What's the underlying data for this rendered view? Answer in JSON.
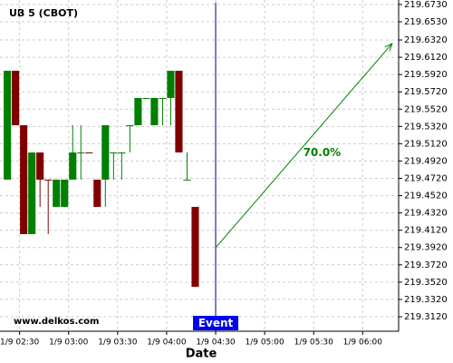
{
  "chart_data": {
    "type": "candlestick",
    "title": "UB 5 (CBOT)",
    "watermark": "www.delkos.com",
    "x_label": "Date",
    "x": [
      "1/9 02:20",
      "1/9 02:25",
      "1/9 02:30",
      "1/9 02:35",
      "1/9 02:40",
      "1/9 02:45",
      "1/9 02:50",
      "1/9 02:55",
      "1/9 03:00",
      "1/9 03:05",
      "1/9 03:10",
      "1/9 03:15",
      "1/9 03:20",
      "1/9 03:25",
      "1/9 03:30",
      "1/9 03:35",
      "1/9 03:40",
      "1/9 03:45",
      "1/9 03:50",
      "1/9 03:55",
      "1/9 04:00",
      "1/9 04:05",
      "1/9 04:10",
      "1/9 04:15"
    ],
    "open": [
      219.4705,
      219.5964,
      219.5334,
      219.4075,
      219.5019,
      219.4705,
      219.439,
      219.439,
      219.4705,
      219.5019,
      219.5019,
      219.4705,
      219.4705,
      219.5019,
      219.5019,
      219.5334,
      219.5334,
      219.5649,
      219.5334,
      219.5649,
      219.5649,
      219.5964,
      219.4705,
      219.439
    ],
    "high": [
      219.5964,
      219.5964,
      219.5334,
      219.5019,
      219.5019,
      219.4705,
      219.4705,
      219.4705,
      219.5334,
      219.5334,
      219.5019,
      219.4705,
      219.5334,
      219.5019,
      219.5019,
      219.5334,
      219.5649,
      219.5649,
      219.5649,
      219.5649,
      219.5964,
      219.5964,
      219.5019,
      219.439
    ],
    "low": [
      219.4705,
      219.5334,
      219.4075,
      219.4075,
      219.439,
      219.4075,
      219.439,
      219.439,
      219.4705,
      219.4705,
      219.5009,
      219.439,
      219.439,
      219.4705,
      219.4705,
      219.5019,
      219.5334,
      219.5649,
      219.5334,
      219.5334,
      219.5334,
      219.5019,
      219.4705,
      219.3466
    ],
    "close": [
      219.5964,
      219.5334,
      219.4075,
      219.5019,
      219.4705,
      219.47,
      219.4705,
      219.4705,
      219.5019,
      219.5019,
      219.5009,
      219.439,
      219.5334,
      219.5019,
      219.5019,
      219.5334,
      219.5649,
      219.5649,
      219.5649,
      219.5649,
      219.5964,
      219.5019,
      219.4705,
      219.3466
    ],
    "up_color": "#008000",
    "down_color": "#800000",
    "event": {
      "x": "1/9 04:30",
      "label": "Event",
      "color": "#0000ee"
    },
    "projection": {
      "x": [
        "1/9 04:30",
        "1/9 06:18"
      ],
      "values": [
        219.3918,
        219.6279
      ],
      "label": "70.0%",
      "color": "#008000"
    },
    "xlim": [
      "1/9 02:18",
      "1/9 06:22"
    ],
    "xticks": [
      "1/9 02:30",
      "1/9 03:00",
      "1/9 03:30",
      "1/9 04:00",
      "1/9 04:30",
      "1/9 05:00",
      "1/9 05:30",
      "1/9 06:00"
    ],
    "ylim": [
      219.2952,
      219.6782
    ],
    "yticks": [
      {
        "value": 219.673,
        "label": "219.6730"
      },
      {
        "value": 219.653,
        "label": "219.6530"
      },
      {
        "value": 219.632,
        "label": "219.6320"
      },
      {
        "value": 219.612,
        "label": "219.6120"
      },
      {
        "value": 219.592,
        "label": "219.5920"
      },
      {
        "value": 219.572,
        "label": "219.5720"
      },
      {
        "value": 219.552,
        "label": "219.5520"
      },
      {
        "value": 219.532,
        "label": "219.5320"
      },
      {
        "value": 219.512,
        "label": "219.5120"
      },
      {
        "value": 219.492,
        "label": "219.4920"
      },
      {
        "value": 219.472,
        "label": "219.4720"
      },
      {
        "value": 219.452,
        "label": "219.4520"
      },
      {
        "value": 219.432,
        "label": "219.4320"
      },
      {
        "value": 219.412,
        "label": "219.4120"
      },
      {
        "value": 219.392,
        "label": "219.3920"
      },
      {
        "value": 219.372,
        "label": "219.3720"
      },
      {
        "value": 219.352,
        "label": "219.3520"
      },
      {
        "value": 219.332,
        "label": "219.3320"
      },
      {
        "value": 219.312,
        "label": "219.3120"
      }
    ],
    "grid": true
  }
}
